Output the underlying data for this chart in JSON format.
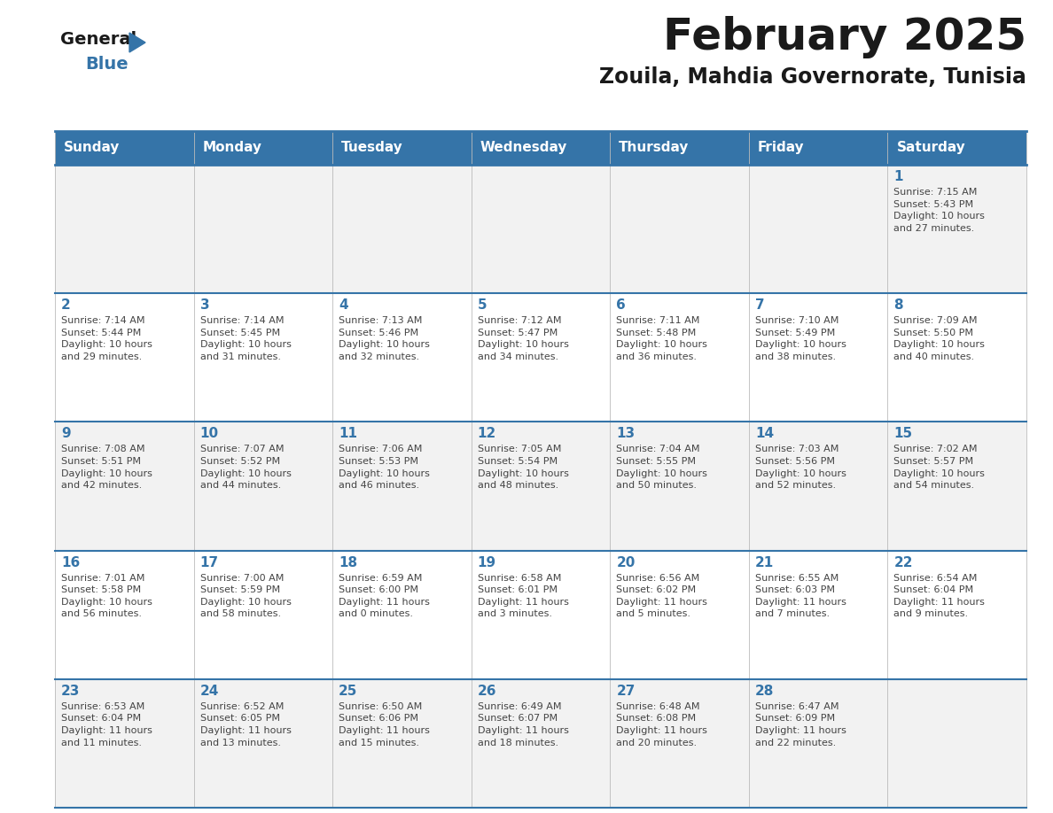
{
  "title": "February 2025",
  "subtitle": "Zouila, Mahdia Governorate, Tunisia",
  "header_bg_color": "#3574a8",
  "header_text_color": "#ffffff",
  "cell_bg_color_light": "#f2f2f2",
  "cell_bg_color_white": "#ffffff",
  "border_color": "#3574a8",
  "day_number_color": "#3574a8",
  "info_text_color": "#444444",
  "days_of_week": [
    "Sunday",
    "Monday",
    "Tuesday",
    "Wednesday",
    "Thursday",
    "Friday",
    "Saturday"
  ],
  "weeks": [
    [
      {
        "day": null,
        "info": null
      },
      {
        "day": null,
        "info": null
      },
      {
        "day": null,
        "info": null
      },
      {
        "day": null,
        "info": null
      },
      {
        "day": null,
        "info": null
      },
      {
        "day": null,
        "info": null
      },
      {
        "day": 1,
        "info": "Sunrise: 7:15 AM\nSunset: 5:43 PM\nDaylight: 10 hours\nand 27 minutes."
      }
    ],
    [
      {
        "day": 2,
        "info": "Sunrise: 7:14 AM\nSunset: 5:44 PM\nDaylight: 10 hours\nand 29 minutes."
      },
      {
        "day": 3,
        "info": "Sunrise: 7:14 AM\nSunset: 5:45 PM\nDaylight: 10 hours\nand 31 minutes."
      },
      {
        "day": 4,
        "info": "Sunrise: 7:13 AM\nSunset: 5:46 PM\nDaylight: 10 hours\nand 32 minutes."
      },
      {
        "day": 5,
        "info": "Sunrise: 7:12 AM\nSunset: 5:47 PM\nDaylight: 10 hours\nand 34 minutes."
      },
      {
        "day": 6,
        "info": "Sunrise: 7:11 AM\nSunset: 5:48 PM\nDaylight: 10 hours\nand 36 minutes."
      },
      {
        "day": 7,
        "info": "Sunrise: 7:10 AM\nSunset: 5:49 PM\nDaylight: 10 hours\nand 38 minutes."
      },
      {
        "day": 8,
        "info": "Sunrise: 7:09 AM\nSunset: 5:50 PM\nDaylight: 10 hours\nand 40 minutes."
      }
    ],
    [
      {
        "day": 9,
        "info": "Sunrise: 7:08 AM\nSunset: 5:51 PM\nDaylight: 10 hours\nand 42 minutes."
      },
      {
        "day": 10,
        "info": "Sunrise: 7:07 AM\nSunset: 5:52 PM\nDaylight: 10 hours\nand 44 minutes."
      },
      {
        "day": 11,
        "info": "Sunrise: 7:06 AM\nSunset: 5:53 PM\nDaylight: 10 hours\nand 46 minutes."
      },
      {
        "day": 12,
        "info": "Sunrise: 7:05 AM\nSunset: 5:54 PM\nDaylight: 10 hours\nand 48 minutes."
      },
      {
        "day": 13,
        "info": "Sunrise: 7:04 AM\nSunset: 5:55 PM\nDaylight: 10 hours\nand 50 minutes."
      },
      {
        "day": 14,
        "info": "Sunrise: 7:03 AM\nSunset: 5:56 PM\nDaylight: 10 hours\nand 52 minutes."
      },
      {
        "day": 15,
        "info": "Sunrise: 7:02 AM\nSunset: 5:57 PM\nDaylight: 10 hours\nand 54 minutes."
      }
    ],
    [
      {
        "day": 16,
        "info": "Sunrise: 7:01 AM\nSunset: 5:58 PM\nDaylight: 10 hours\nand 56 minutes."
      },
      {
        "day": 17,
        "info": "Sunrise: 7:00 AM\nSunset: 5:59 PM\nDaylight: 10 hours\nand 58 minutes."
      },
      {
        "day": 18,
        "info": "Sunrise: 6:59 AM\nSunset: 6:00 PM\nDaylight: 11 hours\nand 0 minutes."
      },
      {
        "day": 19,
        "info": "Sunrise: 6:58 AM\nSunset: 6:01 PM\nDaylight: 11 hours\nand 3 minutes."
      },
      {
        "day": 20,
        "info": "Sunrise: 6:56 AM\nSunset: 6:02 PM\nDaylight: 11 hours\nand 5 minutes."
      },
      {
        "day": 21,
        "info": "Sunrise: 6:55 AM\nSunset: 6:03 PM\nDaylight: 11 hours\nand 7 minutes."
      },
      {
        "day": 22,
        "info": "Sunrise: 6:54 AM\nSunset: 6:04 PM\nDaylight: 11 hours\nand 9 minutes."
      }
    ],
    [
      {
        "day": 23,
        "info": "Sunrise: 6:53 AM\nSunset: 6:04 PM\nDaylight: 11 hours\nand 11 minutes."
      },
      {
        "day": 24,
        "info": "Sunrise: 6:52 AM\nSunset: 6:05 PM\nDaylight: 11 hours\nand 13 minutes."
      },
      {
        "day": 25,
        "info": "Sunrise: 6:50 AM\nSunset: 6:06 PM\nDaylight: 11 hours\nand 15 minutes."
      },
      {
        "day": 26,
        "info": "Sunrise: 6:49 AM\nSunset: 6:07 PM\nDaylight: 11 hours\nand 18 minutes."
      },
      {
        "day": 27,
        "info": "Sunrise: 6:48 AM\nSunset: 6:08 PM\nDaylight: 11 hours\nand 20 minutes."
      },
      {
        "day": 28,
        "info": "Sunrise: 6:47 AM\nSunset: 6:09 PM\nDaylight: 11 hours\nand 22 minutes."
      },
      {
        "day": null,
        "info": null
      }
    ]
  ]
}
